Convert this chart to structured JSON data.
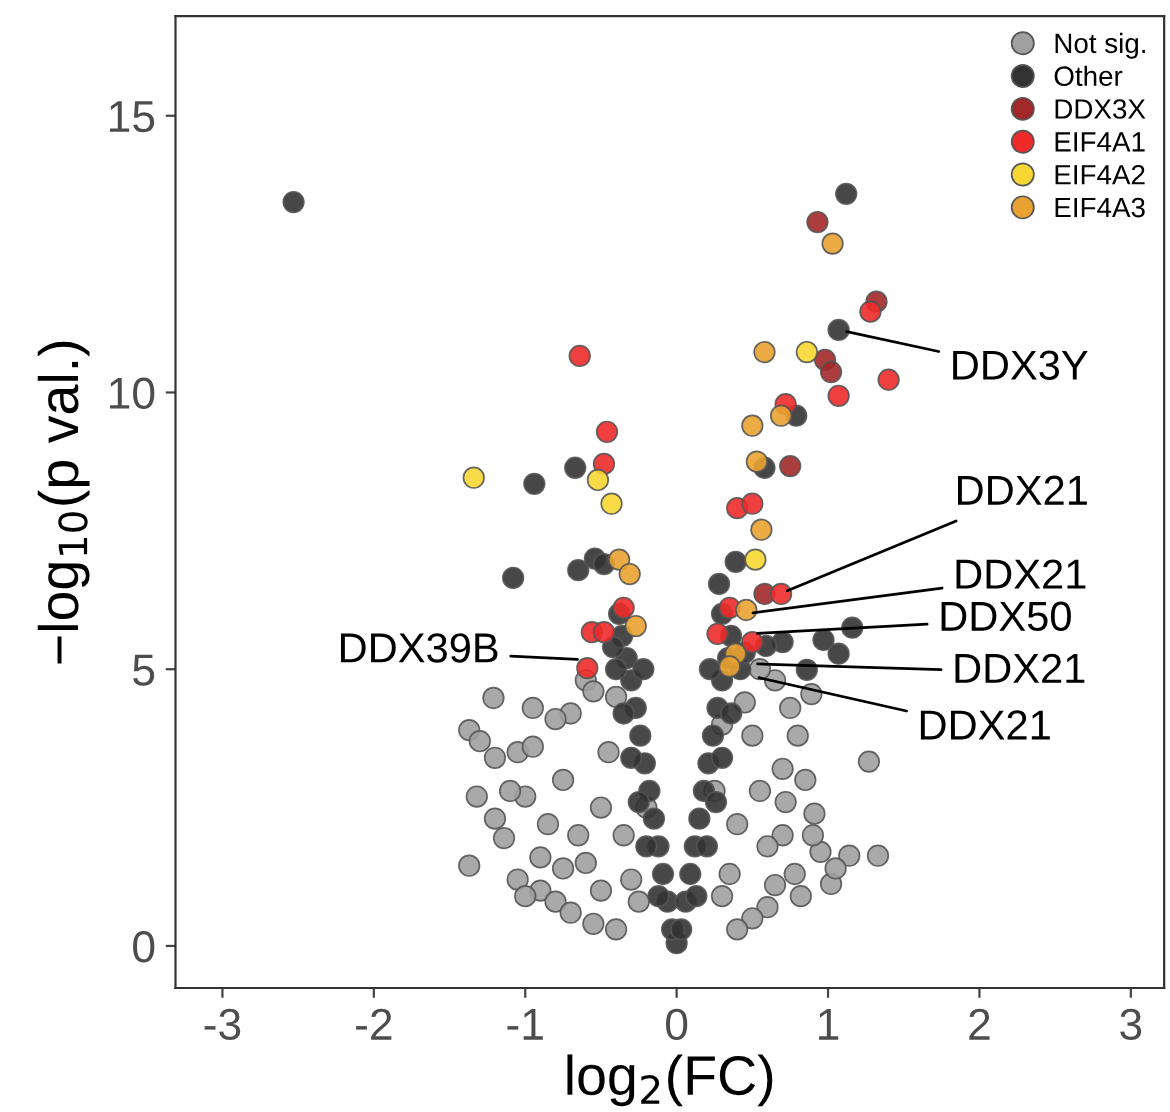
{
  "chart_data": {
    "type": "scatter",
    "xlabel": "log$_{2}$(FC)",
    "ylabel": "−log$_{10}$(p val.)",
    "xlim": [
      -3.31,
      3.22
    ],
    "ylim": [
      -0.76,
      16.8
    ],
    "xticks": [
      -3,
      -2,
      -1,
      0,
      1,
      2,
      3
    ],
    "yticks": [
      0,
      5,
      10,
      15
    ],
    "grid": false,
    "legend": "top right",
    "marker": "circle",
    "series": [
      {
        "name": "Not sig.",
        "color": "#a0a0a0",
        "x": [
          -1.37,
          -1.21,
          -1.37,
          -1.14,
          -1.3,
          -1.2,
          -1.05,
          -0.95,
          -1.0,
          -1.1,
          -1.32,
          -1.05,
          -0.9,
          -0.8,
          -0.7,
          -0.55,
          -0.4,
          -0.85,
          -0.75,
          -0.7,
          -0.6,
          -0.55,
          -0.8,
          -0.65,
          -0.6,
          -0.5,
          -0.45,
          -0.4,
          -0.35,
          -0.3,
          -0.25,
          -0.2,
          -0.5,
          -0.9,
          -0.75,
          -1.2,
          -0.95,
          -1.0,
          1.27,
          1.33,
          1.02,
          1.14,
          0.89,
          0.91,
          0.95,
          0.85,
          0.8,
          0.75,
          0.65,
          0.55,
          0.7,
          0.78,
          0.6,
          0.5,
          0.4,
          0.6,
          0.55,
          0.5,
          0.45,
          0.4,
          0.35,
          0.3,
          0.25,
          0.3,
          0.7,
          0.65,
          0.82,
          0.9,
          1.05,
          0.72
        ],
        "values": [
          3.9,
          4.48,
          1.45,
          1.95,
          3.7,
          3.4,
          3.5,
          3.6,
          2.7,
          2.8,
          2.7,
          1.2,
          1.0,
          0.8,
          0.6,
          0.4,
          0.3,
          2.2,
          3.0,
          4.2,
          4.8,
          4.6,
          4.1,
          2.0,
          1.5,
          2.5,
          3.5,
          4.5,
          2.0,
          1.2,
          0.8,
          2.5,
          1.0,
          1.6,
          1.4,
          2.3,
          4.3,
          0.9,
          3.33,
          1.63,
          1.12,
          1.63,
          4.55,
          2.39,
          1.7,
          3.0,
          3.8,
          4.3,
          4.8,
          5.0,
          2.0,
          1.3,
          0.7,
          0.5,
          0.3,
          1.8,
          2.8,
          3.8,
          4.4,
          2.2,
          1.3,
          0.9,
          2.8,
          4.0,
          3.2,
          1.1,
          0.9,
          2.0,
          1.4,
          2.6
        ]
      },
      {
        "name": "Other",
        "color": "#333333",
        "x": [
          -2.53,
          1.12,
          1.07,
          -0.94,
          -0.67,
          -1.08,
          -0.65,
          -0.54,
          -0.48,
          0.79,
          0.58,
          1.16,
          0.97,
          1.07,
          0.86,
          0.7,
          0.59,
          0.39,
          0.28,
          0,
          -0.03,
          0.03,
          -0.06,
          0.06,
          -0.09,
          0.09,
          -0.12,
          0.12,
          -0.15,
          0.15,
          -0.18,
          0.18,
          -0.21,
          0.21,
          -0.24,
          0.24,
          -0.27,
          0.27,
          -0.3,
          0.3,
          -0.33,
          0.34,
          -0.36,
          0.36,
          -0.38,
          0.3,
          -0.12,
          0.13,
          -0.2,
          0.2,
          -0.25,
          0.26,
          -0.3,
          0.3,
          -0.35,
          0.36,
          -0.4,
          0.42,
          -0.22,
          0.22,
          -0.42,
          0.45
        ],
        "values": [
          13.44,
          13.59,
          11.13,
          8.35,
          8.64,
          6.65,
          6.79,
          7.0,
          6.9,
          9.58,
          8.64,
          5.75,
          5.53,
          5.28,
          4.99,
          5.49,
          5.42,
          6.94,
          6.54,
          0.05,
          0.3,
          0.3,
          0.8,
          0.8,
          1.3,
          1.3,
          1.8,
          1.8,
          2.3,
          2.3,
          2.8,
          2.8,
          3.3,
          3.3,
          3.8,
          3.8,
          4.3,
          4.3,
          4.8,
          4.8,
          5.2,
          5.2,
          5.6,
          5.6,
          6.0,
          6.0,
          0.9,
          0.9,
          1.8,
          1.8,
          2.6,
          2.6,
          3.4,
          3.4,
          4.2,
          4.2,
          5.0,
          5.0,
          5.0,
          5.0,
          5.4,
          5.3
        ]
      },
      {
        "name": "DDX3X",
        "color": "#a3282a",
        "x": [
          0.93,
          1.32,
          0.98,
          1.02,
          0.75,
          0.58
        ],
        "values": [
          13.08,
          11.64,
          10.59,
          10.37,
          8.67,
          6.36
        ]
      },
      {
        "name": "EIF4A1",
        "color": "#ee2a2a",
        "x": [
          -0.64,
          -0.46,
          -0.48,
          1.28,
          1.4,
          1.07,
          0.72,
          0.4,
          0.5,
          0.69,
          -0.35,
          -0.56,
          -0.48,
          -0.59,
          0.27,
          0.35,
          0.5
        ],
        "values": [
          10.66,
          9.29,
          8.71,
          11.46,
          10.23,
          9.94,
          9.79,
          7.91,
          7.99,
          6.36,
          6.11,
          5.67,
          5.67,
          5.02,
          5.64,
          6.11,
          5.49
        ]
      },
      {
        "name": "EIF4A2",
        "color": "#f7d733",
        "x": [
          -1.34,
          -0.52,
          -0.43,
          0.86,
          0.52
        ],
        "values": [
          8.46,
          8.42,
          7.99,
          10.73,
          6.98
        ]
      },
      {
        "name": "EIF4A3",
        "color": "#e9a231",
        "x": [
          0.58,
          0.5,
          0.53,
          0.56,
          -0.38,
          -0.31,
          -0.27,
          1.03,
          0.69,
          0.39,
          0.35,
          0.46
        ],
        "values": [
          10.73,
          9.4,
          8.75,
          7.52,
          6.98,
          6.72,
          5.78,
          12.69,
          9.58,
          5.28,
          5.05,
          6.07
        ]
      }
    ],
    "annotations": [
      {
        "text": "DDX3Y",
        "x": 1.07,
        "y": 11.13
      },
      {
        "text": "DDX21",
        "x": 0.68,
        "y": 6.36
      },
      {
        "text": "DDX21",
        "x": 0.45,
        "y": 6.0
      },
      {
        "text": "DDX50",
        "x": 0.48,
        "y": 5.64
      },
      {
        "text": "DDX21",
        "x": 0.48,
        "y": 5.1
      },
      {
        "text": "DDX21",
        "x": 0.49,
        "y": 4.88
      },
      {
        "text": "DDX39B",
        "x": -0.6,
        "y": 5.17
      }
    ]
  }
}
